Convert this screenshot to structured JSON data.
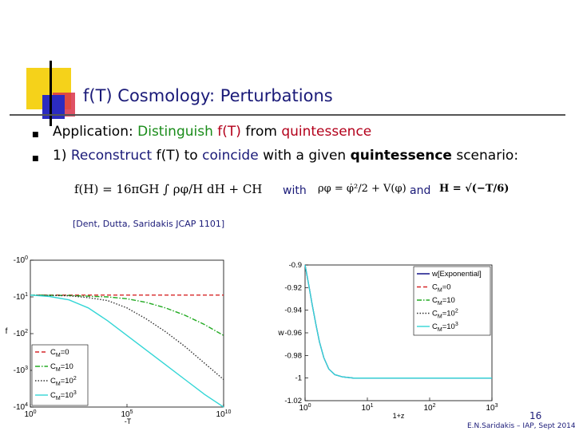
{
  "slide": {
    "title": "f(T) Cosmology: Perturbations",
    "bullet1": {
      "prefix": "Application: ",
      "green": "Distinguish ",
      "red1": "f(T)",
      "mid": " from ",
      "red2": "quintessence"
    },
    "bullet2": {
      "num": "1)  ",
      "reconstruct": "Reconstruct",
      "sp1": " f(T) to ",
      "coincide": "coincide",
      "sp2": " with a given ",
      "quint": "quintessence",
      "tail": " scenario:"
    },
    "formula_f": "f(H) = 16πGH ∫ ρφ/H dH + CH",
    "with": "with",
    "formula_rho": "ρφ = φ̇²/2 + V(φ)",
    "and": "and",
    "formula_H": "H = √(−T/6)",
    "reference": "[Dent, Dutta, Saridakis  JCAP 1101]",
    "page_number": "16",
    "footer": "E.N.Saridakis – IAP, Sept 2014"
  },
  "chart_data": [
    {
      "type": "line",
      "title": "",
      "xlabel": "-T",
      "ylabel": "f",
      "xscale": "log",
      "yscale": "log (negative)",
      "xlim": [
        1,
        10000000000.0
      ],
      "ylim": [
        -1,
        -10000
      ],
      "xticks": [
        "10^0",
        "10^5",
        "10^10"
      ],
      "yticks": [
        "-10^0",
        "-10^1",
        "-10^2",
        "-10^3",
        "-10^4"
      ],
      "legend_position": "bottom-left",
      "series": [
        {
          "name": "C_M=0",
          "color": "#d62728",
          "dash": "dashed",
          "x": [
            1,
            10000000000.0
          ],
          "log_abs_y": [
            0.95,
            0.95
          ]
        },
        {
          "name": "C_M=10",
          "color": "#22aa22",
          "dash": "dashdot",
          "x": [
            1,
            100.0,
            10000.0,
            100000.0,
            1000000.0,
            10000000.0,
            100000000.0,
            1000000000.0,
            10000000000.0
          ],
          "log_abs_y": [
            0.95,
            0.96,
            1.0,
            1.05,
            1.15,
            1.3,
            1.5,
            1.75,
            2.05
          ]
        },
        {
          "name": "C_M=10^2",
          "color": "#333333",
          "dash": "dotted",
          "x": [
            1,
            100.0,
            1000.0,
            10000.0,
            100000.0,
            1000000.0,
            10000000.0,
            100000000.0,
            1000000000.0,
            10000000000.0
          ],
          "log_abs_y": [
            0.95,
            0.97,
            1.02,
            1.1,
            1.3,
            1.6,
            1.95,
            2.35,
            2.8,
            3.25
          ]
        },
        {
          "name": "C_M=10^3",
          "color": "#33d6d6",
          "dash": "solid",
          "x": [
            1,
            10.0,
            100.0,
            1000.0,
            10000.0,
            100000.0,
            1000000.0,
            10000000.0,
            100000000.0,
            1000000000.0,
            10000000000.0
          ],
          "log_abs_y": [
            0.95,
            0.99,
            1.08,
            1.3,
            1.65,
            2.05,
            2.45,
            2.85,
            3.25,
            3.65,
            4.0
          ]
        }
      ]
    },
    {
      "type": "line",
      "title": "",
      "xlabel": "1+z",
      "ylabel": "w",
      "xscale": "log",
      "xlim": [
        1,
        1000
      ],
      "ylim": [
        -1.02,
        -0.9
      ],
      "xticks": [
        "10^0",
        "10^1",
        "10^2",
        "10^3"
      ],
      "yticks": [
        "-0.9",
        "-0.92",
        "-0.94",
        "-0.96",
        "-0.98",
        "-1",
        "-1.02"
      ],
      "legend_position": "top-right",
      "series": [
        {
          "name": "w[Exponential]",
          "color": "#000080",
          "dash": "solid",
          "x": [
            1,
            1.15,
            1.3,
            1.5,
            1.7,
            2.0,
            2.4,
            3.0,
            4.0,
            6.0,
            10,
            100,
            1000
          ],
          "y": [
            -0.9,
            -0.918,
            -0.935,
            -0.953,
            -0.968,
            -0.982,
            -0.992,
            -0.997,
            -0.999,
            -1.0,
            -1.0,
            -1.0,
            -1.0
          ]
        },
        {
          "name": "C_M=0",
          "color": "#d62728",
          "dash": "dashed",
          "x": [],
          "y": []
        },
        {
          "name": "C_M=10",
          "color": "#22aa22",
          "dash": "dashdot",
          "x": [],
          "y": []
        },
        {
          "name": "C_M=10^2",
          "color": "#333333",
          "dash": "dotted",
          "x": [],
          "y": []
        },
        {
          "name": "C_M=10^3",
          "color": "#33d6d6",
          "dash": "solid",
          "x": [
            1,
            1.15,
            1.3,
            1.5,
            1.7,
            2.0,
            2.4,
            3.0,
            4.0,
            6.0,
            10,
            100,
            1000
          ],
          "y": [
            -0.9,
            -0.918,
            -0.935,
            -0.953,
            -0.968,
            -0.982,
            -0.992,
            -0.997,
            -0.999,
            -1.0,
            -1.0,
            -1.0,
            -1.0
          ]
        }
      ]
    }
  ]
}
